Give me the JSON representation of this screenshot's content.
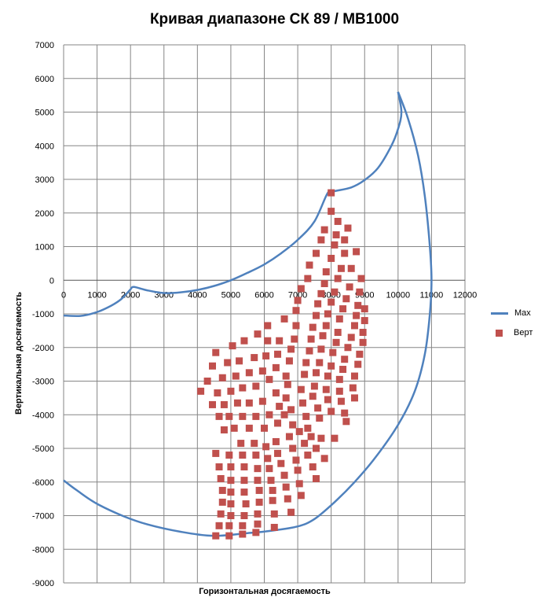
{
  "chart_data": {
    "type": "scatter",
    "title": "Кривая диапазоне СК 89 / МВ1000",
    "xlabel": "Горизонтальная  досягаемость",
    "ylabel": "Вертикальная  досягаемость",
    "xlim": [
      0,
      12000
    ],
    "ylim": [
      -9000,
      7000
    ],
    "x_ticks": [
      "0",
      "1000",
      "2000",
      "3000",
      "4000",
      "5000",
      "6000",
      "7000",
      "8000",
      "9000",
      "10000",
      "11000",
      "12000"
    ],
    "y_ticks": [
      "7000",
      "6000",
      "5000",
      "4000",
      "3000",
      "2000",
      "1000",
      "0",
      "-1000",
      "-2000",
      "-3000",
      "-4000",
      "-5000",
      "-6000",
      "-7000",
      "-8000",
      "-9000"
    ],
    "grid": true,
    "legend_position": "right",
    "series": [
      {
        "name": "Max",
        "kind": "line",
        "color": "#4F81BD",
        "segments": [
          [
            [
              0,
              -1050
            ],
            [
              500,
              -1060
            ],
            [
              900,
              -980
            ],
            [
              1300,
              -820
            ],
            [
              1700,
              -580
            ],
            [
              2000,
              -270
            ]
          ],
          [
            [
              2000,
              -270
            ],
            [
              2100,
              -200
            ],
            [
              2500,
              -300
            ],
            [
              3000,
              -380
            ],
            [
              3500,
              -360
            ],
            [
              4000,
              -290
            ],
            [
              4500,
              -170
            ],
            [
              5000,
              0
            ],
            [
              5500,
              220
            ],
            [
              6000,
              470
            ],
            [
              6500,
              800
            ],
            [
              7000,
              1200
            ],
            [
              7500,
              1750
            ],
            [
              7900,
              2600
            ],
            [
              8100,
              2650
            ],
            [
              8600,
              2760
            ],
            [
              9000,
              2980
            ],
            [
              9400,
              3340
            ],
            [
              9800,
              4000
            ],
            [
              10000,
              4500
            ],
            [
              10100,
              5000
            ],
            [
              10000,
              5600
            ]
          ],
          [
            [
              10000,
              5600
            ],
            [
              10300,
              4800
            ],
            [
              10600,
              3700
            ],
            [
              10800,
              2500
            ],
            [
              10950,
              1000
            ],
            [
              11000,
              0
            ],
            [
              10950,
              -1000
            ],
            [
              10800,
              -2200
            ],
            [
              10500,
              -3300
            ],
            [
              10000,
              -4300
            ],
            [
              9300,
              -5300
            ],
            [
              8700,
              -6000
            ],
            [
              8100,
              -6600
            ],
            [
              7500,
              -7100
            ],
            [
              7000,
              -7320
            ],
            [
              6200,
              -7450
            ],
            [
              5500,
              -7520
            ],
            [
              4500,
              -7600
            ],
            [
              3500,
              -7480
            ],
            [
              2500,
              -7260
            ],
            [
              1800,
              -7020
            ],
            [
              1000,
              -6650
            ],
            [
              400,
              -6250
            ],
            [
              0,
              -5950
            ]
          ]
        ]
      },
      {
        "name": "Верт",
        "kind": "scatter",
        "color": "#C0504D",
        "points": [
          [
            4100,
            -3300
          ],
          [
            4300,
            -3000
          ],
          [
            4450,
            -2550
          ],
          [
            4550,
            -2150
          ],
          [
            4450,
            -3700
          ],
          [
            4650,
            -4050
          ],
          [
            4600,
            -3350
          ],
          [
            4750,
            -2900
          ],
          [
            4900,
            -2450
          ],
          [
            5050,
            -1950
          ],
          [
            4800,
            -3700
          ],
          [
            4950,
            -4050
          ],
          [
            4800,
            -4450
          ],
          [
            5000,
            -3300
          ],
          [
            5150,
            -2850
          ],
          [
            5250,
            -2400
          ],
          [
            5400,
            -1800
          ],
          [
            5200,
            -3650
          ],
          [
            5100,
            -4400
          ],
          [
            5350,
            -4050
          ],
          [
            5350,
            -3200
          ],
          [
            5550,
            -2750
          ],
          [
            5700,
            -2300
          ],
          [
            5800,
            -1600
          ],
          [
            5550,
            -3650
          ],
          [
            5550,
            -4400
          ],
          [
            5750,
            -4050
          ],
          [
            5750,
            -3150
          ],
          [
            5950,
            -2700
          ],
          [
            6050,
            -2250
          ],
          [
            6100,
            -1800
          ],
          [
            6100,
            -1350
          ],
          [
            5950,
            -3600
          ],
          [
            6000,
            -4400
          ],
          [
            6150,
            -4000
          ],
          [
            6150,
            -2950
          ],
          [
            6350,
            -2600
          ],
          [
            6400,
            -2200
          ],
          [
            6450,
            -1800
          ],
          [
            6600,
            -1150
          ],
          [
            6350,
            -3350
          ],
          [
            6450,
            -3750
          ],
          [
            6400,
            -4250
          ],
          [
            6600,
            -4000
          ],
          [
            6700,
            -3100
          ],
          [
            6650,
            -2850
          ],
          [
            6750,
            -2400
          ],
          [
            6800,
            -2050
          ],
          [
            6900,
            -1750
          ],
          [
            6950,
            -1350
          ],
          [
            6950,
            -900
          ],
          [
            6650,
            -3500
          ],
          [
            6800,
            -3850
          ],
          [
            6850,
            -4300
          ],
          [
            7000,
            -600
          ],
          [
            7100,
            -250
          ],
          [
            7300,
            50
          ],
          [
            7350,
            450
          ],
          [
            7550,
            800
          ],
          [
            7700,
            1200
          ],
          [
            7800,
            1500
          ],
          [
            8000,
            2050
          ],
          [
            8000,
            2600
          ],
          [
            7100,
            -3250
          ],
          [
            7200,
            -2800
          ],
          [
            7250,
            -2450
          ],
          [
            7350,
            -2100
          ],
          [
            7400,
            -1750
          ],
          [
            7450,
            -1400
          ],
          [
            7550,
            -1050
          ],
          [
            7600,
            -700
          ],
          [
            7700,
            -400
          ],
          [
            7800,
            -100
          ],
          [
            7850,
            250
          ],
          [
            8000,
            650
          ],
          [
            8100,
            1050
          ],
          [
            8150,
            1350
          ],
          [
            8200,
            1750
          ],
          [
            7150,
            -3650
          ],
          [
            7250,
            -4050
          ],
          [
            7300,
            -4400
          ],
          [
            7500,
            -3150
          ],
          [
            7550,
            -2750
          ],
          [
            7650,
            -2450
          ],
          [
            7700,
            -2050
          ],
          [
            7750,
            -1650
          ],
          [
            7850,
            -1350
          ],
          [
            7900,
            -1000
          ],
          [
            8000,
            -650
          ],
          [
            8100,
            -350
          ],
          [
            8200,
            50
          ],
          [
            8300,
            350
          ],
          [
            8400,
            800
          ],
          [
            8400,
            1200
          ],
          [
            8500,
            1550
          ],
          [
            7450,
            -3450
          ],
          [
            7600,
            -3800
          ],
          [
            7650,
            -4100
          ],
          [
            7850,
            -3250
          ],
          [
            7900,
            -2850
          ],
          [
            8000,
            -2550
          ],
          [
            8050,
            -2150
          ],
          [
            8150,
            -1850
          ],
          [
            8200,
            -1550
          ],
          [
            8250,
            -1150
          ],
          [
            8350,
            -850
          ],
          [
            8450,
            -550
          ],
          [
            8550,
            -200
          ],
          [
            8600,
            350
          ],
          [
            8750,
            850
          ],
          [
            7900,
            -3550
          ],
          [
            8000,
            -3900
          ],
          [
            8250,
            -3300
          ],
          [
            8250,
            -2950
          ],
          [
            8350,
            -2650
          ],
          [
            8400,
            -2350
          ],
          [
            8500,
            -2000
          ],
          [
            8600,
            -1700
          ],
          [
            8700,
            -1350
          ],
          [
            8750,
            -1050
          ],
          [
            8800,
            -750
          ],
          [
            8850,
            -350
          ],
          [
            8900,
            50
          ],
          [
            8300,
            -3600
          ],
          [
            8400,
            -3950
          ],
          [
            8450,
            -4200
          ],
          [
            8650,
            -3200
          ],
          [
            8700,
            -2850
          ],
          [
            8800,
            -2500
          ],
          [
            8850,
            -2200
          ],
          [
            8950,
            -1850
          ],
          [
            8950,
            -1550
          ],
          [
            9000,
            -1200
          ],
          [
            9000,
            -850
          ],
          [
            8700,
            -3500
          ],
          [
            4550,
            -5150
          ],
          [
            4650,
            -5550
          ],
          [
            4700,
            -5900
          ],
          [
            4750,
            -6250
          ],
          [
            4750,
            -6600
          ],
          [
            4700,
            -6950
          ],
          [
            4650,
            -7300
          ],
          [
            4550,
            -7600
          ],
          [
            4950,
            -5200
          ],
          [
            5000,
            -5550
          ],
          [
            5000,
            -5950
          ],
          [
            5000,
            -6300
          ],
          [
            5000,
            -6650
          ],
          [
            5000,
            -7000
          ],
          [
            4950,
            -7300
          ],
          [
            4950,
            -7600
          ],
          [
            5300,
            -4850
          ],
          [
            5350,
            -5200
          ],
          [
            5400,
            -5550
          ],
          [
            5400,
            -5950
          ],
          [
            5400,
            -6300
          ],
          [
            5450,
            -6650
          ],
          [
            5400,
            -7000
          ],
          [
            5350,
            -7300
          ],
          [
            5350,
            -7550
          ],
          [
            5700,
            -4850
          ],
          [
            5750,
            -5200
          ],
          [
            5800,
            -5600
          ],
          [
            5800,
            -5950
          ],
          [
            5850,
            -6250
          ],
          [
            5850,
            -6600
          ],
          [
            5800,
            -6950
          ],
          [
            5800,
            -7250
          ],
          [
            5750,
            -7500
          ],
          [
            6050,
            -4950
          ],
          [
            6100,
            -5300
          ],
          [
            6150,
            -5600
          ],
          [
            6200,
            -5950
          ],
          [
            6250,
            -6250
          ],
          [
            6250,
            -6550
          ],
          [
            6300,
            -6950
          ],
          [
            6300,
            -7350
          ],
          [
            6350,
            -4800
          ],
          [
            6400,
            -5150
          ],
          [
            6500,
            -5450
          ],
          [
            6600,
            -5800
          ],
          [
            6650,
            -6150
          ],
          [
            6700,
            -6500
          ],
          [
            6800,
            -6900
          ],
          [
            6750,
            -4650
          ],
          [
            6850,
            -5000
          ],
          [
            6950,
            -5350
          ],
          [
            7000,
            -5650
          ],
          [
            7050,
            -6050
          ],
          [
            7100,
            -6400
          ],
          [
            7050,
            -4500
          ],
          [
            7200,
            -4850
          ],
          [
            7300,
            -5200
          ],
          [
            7450,
            -5550
          ],
          [
            7550,
            -5900
          ],
          [
            7400,
            -4650
          ],
          [
            7550,
            -5000
          ],
          [
            7800,
            -5300
          ],
          [
            7700,
            -4700
          ],
          [
            8100,
            -4700
          ]
        ]
      }
    ]
  },
  "legend": {
    "items": [
      {
        "label": "Max"
      },
      {
        "label": "Верт"
      }
    ]
  }
}
